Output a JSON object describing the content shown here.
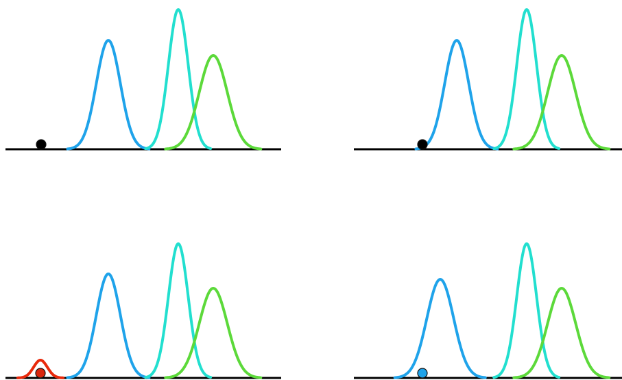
{
  "colors": {
    "axis": "#000000",
    "blue": "#1fa3ea",
    "cyan": "#22dfcf",
    "green": "#5cd93a",
    "red": "#e8290b",
    "dot_black": "#000000",
    "dot_red": "#d9260d",
    "dot_blue": "#1fa3ea"
  },
  "panels": [
    {
      "id": "top-left",
      "curves": [
        {
          "name": "blue",
          "color_key": "blue",
          "mu": 158,
          "sigma": 17.5,
          "amp": 159,
          "span": 3.4
        },
        {
          "name": "cyan",
          "color_key": "cyan",
          "mu": 260,
          "sigma": 14.5,
          "amp": 204,
          "span": 3.3
        },
        {
          "name": "green",
          "color_key": "green",
          "mu": 311,
          "sigma": 20.5,
          "amp": 137,
          "span": 3.4
        }
      ],
      "dot": {
        "color_key": "dot_black",
        "x": 60
      }
    },
    {
      "id": "top-right",
      "curves": [
        {
          "name": "blue",
          "color_key": "blue",
          "mu": 158,
          "sigma": 17.5,
          "amp": 159,
          "span": 3.4
        },
        {
          "name": "cyan",
          "color_key": "cyan",
          "mu": 260,
          "sigma": 14.5,
          "amp": 204,
          "span": 3.3
        },
        {
          "name": "green",
          "color_key": "green",
          "mu": 311,
          "sigma": 20.5,
          "amp": 137,
          "span": 3.4
        }
      ],
      "dot": {
        "color_key": "dot_black",
        "x": 108
      }
    },
    {
      "id": "bottom-left",
      "curves": [
        {
          "name": "red",
          "color_key": "red",
          "mu": 59,
          "sigma": 10,
          "amp": 26,
          "span": 3.3
        },
        {
          "name": "blue",
          "color_key": "blue",
          "mu": 158,
          "sigma": 17.5,
          "amp": 152,
          "span": 3.4
        },
        {
          "name": "cyan",
          "color_key": "cyan",
          "mu": 260,
          "sigma": 14.5,
          "amp": 196,
          "span": 3.3
        },
        {
          "name": "green",
          "color_key": "green",
          "mu": 311,
          "sigma": 20.5,
          "amp": 131,
          "span": 3.4
        }
      ],
      "dot": {
        "color_key": "dot_red",
        "x": 59
      }
    },
    {
      "id": "bottom-right",
      "curves": [
        {
          "name": "blue",
          "color_key": "blue",
          "mu": 134,
          "sigma": 19.5,
          "amp": 144,
          "span": 3.4
        },
        {
          "name": "cyan",
          "color_key": "cyan",
          "mu": 260,
          "sigma": 14.5,
          "amp": 196,
          "span": 3.3
        },
        {
          "name": "green",
          "color_key": "green",
          "mu": 311,
          "sigma": 20.5,
          "amp": 131,
          "span": 3.4
        }
      ],
      "dot": {
        "color_key": "dot_blue",
        "x": 108
      }
    }
  ]
}
